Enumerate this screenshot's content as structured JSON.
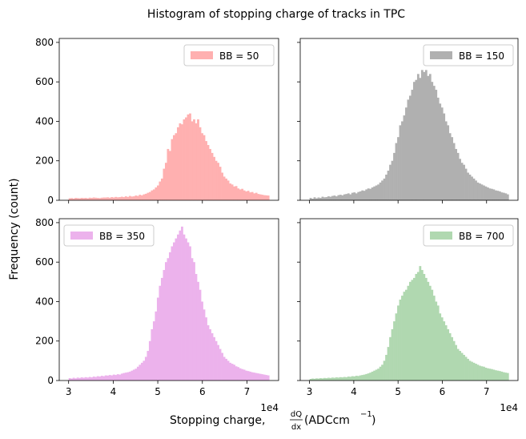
{
  "title": "Histogram of stopping charge of tracks in TPC",
  "ylabel": "Frequency (count)",
  "xlabel_prefix": "Stopping charge, ",
  "xlabel_frac_num": "dQ",
  "xlabel_frac_den": "dx",
  "xlabel_suffix": " (ADCcm",
  "xlabel_sup": "−1",
  "xlabel_close": ")",
  "offset_text": "1e4",
  "chart_data": [
    {
      "type": "histogram",
      "legend": "BB = 50",
      "legend_position": "upper right",
      "color": "#ffb0b0",
      "bin_start": 3.0,
      "bin_width": 0.045,
      "xlim": [
        2.79,
        7.71
      ],
      "ylim": [
        0,
        820
      ],
      "xticks": [
        "3",
        "4",
        "5",
        "6",
        "7"
      ],
      "yticks": [
        "0",
        "200",
        "400",
        "600",
        "800"
      ],
      "peak": 440,
      "values": [
        10,
        11,
        9,
        12,
        11,
        10,
        12,
        11,
        12,
        10,
        13,
        12,
        14,
        13,
        12,
        11,
        13,
        14,
        14,
        15,
        13,
        16,
        14,
        17,
        15,
        16,
        18,
        16,
        20,
        17,
        22,
        19,
        20,
        24,
        22,
        28,
        25,
        30,
        33,
        38,
        42,
        50,
        55,
        65,
        75,
        95,
        110,
        160,
        190,
        260,
        250,
        310,
        330,
        340,
        370,
        390,
        385,
        410,
        420,
        435,
        440,
        400,
        410,
        390,
        410,
        370,
        340,
        330,
        300,
        280,
        260,
        240,
        220,
        200,
        190,
        170,
        140,
        120,
        110,
        100,
        85,
        80,
        70,
        72,
        60,
        55,
        58,
        50,
        45,
        48,
        40,
        42,
        35,
        38,
        32,
        30,
        28,
        26,
        25,
        24
      ]
    },
    {
      "type": "histogram",
      "legend": "BB = 150",
      "legend_position": "upper right",
      "color": "#b0b0b0",
      "bin_start": 3.0,
      "bin_width": 0.045,
      "xlim": [
        2.79,
        7.71
      ],
      "ylim": [
        0,
        820
      ],
      "xticks": [
        "3",
        "4",
        "5",
        "6",
        "7"
      ],
      "yticks": [
        "0",
        "200",
        "400",
        "600",
        "800"
      ],
      "peak": 660,
      "values": [
        12,
        8,
        15,
        10,
        14,
        12,
        18,
        15,
        16,
        20,
        18,
        22,
        24,
        20,
        26,
        28,
        25,
        30,
        32,
        35,
        30,
        38,
        40,
        35,
        42,
        45,
        50,
        48,
        55,
        60,
        58,
        65,
        70,
        75,
        80,
        90,
        100,
        110,
        130,
        150,
        180,
        200,
        240,
        290,
        320,
        380,
        400,
        430,
        470,
        510,
        530,
        560,
        600,
        610,
        640,
        620,
        660,
        650,
        660,
        630,
        640,
        600,
        580,
        560,
        520,
        490,
        470,
        440,
        400,
        380,
        340,
        320,
        290,
        260,
        240,
        210,
        190,
        180,
        160,
        140,
        130,
        120,
        110,
        100,
        90,
        85,
        80,
        75,
        70,
        65,
        60,
        58,
        55,
        50,
        48,
        45,
        40,
        38,
        35,
        30
      ]
    },
    {
      "type": "histogram",
      "legend": "BB = 350",
      "legend_position": "upper left",
      "color": "#ecb2ec",
      "bin_start": 3.0,
      "bin_width": 0.045,
      "xlim": [
        2.79,
        7.71
      ],
      "ylim": [
        0,
        820
      ],
      "xticks": [
        "3",
        "4",
        "5",
        "6",
        "7"
      ],
      "yticks": [
        "0",
        "200",
        "400",
        "600",
        "800"
      ],
      "peak": 780,
      "values": [
        12,
        10,
        14,
        11,
        15,
        13,
        16,
        14,
        17,
        15,
        18,
        16,
        20,
        18,
        22,
        20,
        24,
        22,
        26,
        25,
        28,
        26,
        30,
        28,
        32,
        30,
        35,
        38,
        40,
        42,
        45,
        50,
        55,
        60,
        70,
        80,
        90,
        100,
        120,
        150,
        200,
        260,
        300,
        350,
        420,
        480,
        520,
        560,
        600,
        620,
        650,
        680,
        700,
        720,
        740,
        760,
        780,
        740,
        720,
        700,
        680,
        620,
        600,
        540,
        500,
        460,
        400,
        360,
        320,
        280,
        260,
        240,
        220,
        200,
        180,
        160,
        140,
        120,
        110,
        100,
        90,
        85,
        80,
        72,
        68,
        62,
        58,
        55,
        50,
        48,
        45,
        42,
        40,
        38,
        36,
        34,
        32,
        30,
        28,
        26
      ]
    },
    {
      "type": "histogram",
      "legend": "BB = 700",
      "legend_position": "upper right",
      "color": "#b0d8b0",
      "bin_start": 3.0,
      "bin_width": 0.045,
      "xlim": [
        2.79,
        7.71
      ],
      "ylim": [
        0,
        820
      ],
      "xticks": [
        "3",
        "4",
        "5",
        "6",
        "7"
      ],
      "yticks": [
        "0",
        "200",
        "400",
        "600",
        "800"
      ],
      "peak": 580,
      "values": [
        8,
        10,
        9,
        11,
        10,
        12,
        11,
        13,
        12,
        14,
        13,
        15,
        14,
        16,
        15,
        17,
        16,
        18,
        17,
        20,
        19,
        22,
        21,
        24,
        23,
        26,
        28,
        30,
        33,
        36,
        40,
        45,
        50,
        55,
        60,
        70,
        80,
        100,
        130,
        170,
        220,
        260,
        300,
        340,
        380,
        410,
        430,
        450,
        460,
        480,
        500,
        510,
        520,
        540,
        550,
        580,
        560,
        540,
        520,
        500,
        480,
        460,
        430,
        400,
        380,
        340,
        320,
        300,
        280,
        260,
        240,
        220,
        200,
        180,
        160,
        150,
        140,
        130,
        120,
        110,
        100,
        95,
        90,
        85,
        80,
        75,
        72,
        70,
        65,
        62,
        60,
        58,
        55,
        52,
        50,
        48,
        45,
        42,
        40,
        38
      ]
    }
  ]
}
